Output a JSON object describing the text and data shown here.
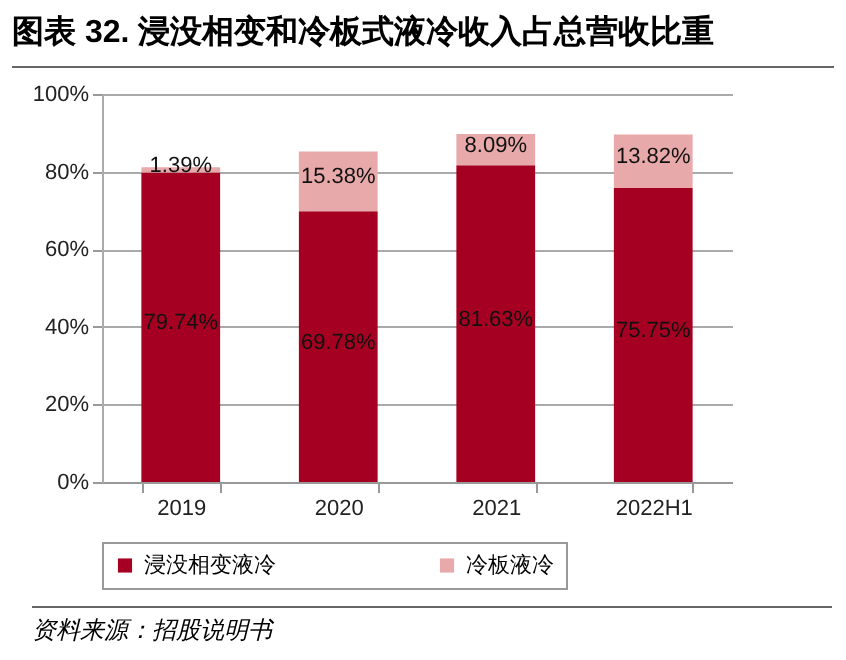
{
  "chart_data": {
    "type": "bar",
    "title": "图表 32. 浸没相变和冷板式液冷收入占总营收比重",
    "categories": [
      "2019",
      "2020",
      "2021",
      "2022H1"
    ],
    "stacked": true,
    "series": [
      {
        "name": "浸没相变液冷",
        "color": "#a50021",
        "values": [
          79.74,
          69.78,
          81.63,
          75.75
        ],
        "value_labels": [
          "79.74%",
          "69.78%",
          "81.63%",
          "75.75%"
        ]
      },
      {
        "name": "冷板液冷",
        "color": "#e8a9aa",
        "values": [
          1.39,
          15.38,
          8.09,
          13.82
        ],
        "value_labels": [
          "1.39%",
          "15.38%",
          "8.09%",
          "13.82%"
        ]
      }
    ],
    "ylim": [
      0,
      100
    ],
    "yticks": [
      {
        "value": 0,
        "label": "0%"
      },
      {
        "value": 20,
        "label": "20%"
      },
      {
        "value": 40,
        "label": "40%"
      },
      {
        "value": 60,
        "label": "60%"
      },
      {
        "value": 80,
        "label": "80%"
      },
      {
        "value": 100,
        "label": "100%"
      }
    ],
    "grid": "y",
    "legend": "bottom",
    "annotations": [
      "资料来源：招股说明书"
    ]
  }
}
